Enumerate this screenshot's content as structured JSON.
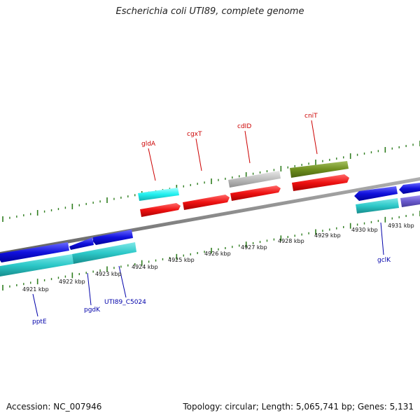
{
  "title": "Escherichia coli UTI89, complete genome",
  "footer": {
    "accession": "Accession: NC_007946",
    "summary": "Topology: circular; Length: 5,065,741 bp; Genes: 5,131"
  },
  "map": {
    "kbp_labels": [
      "4921 kbp",
      "4922 kbp",
      "4923 kbp",
      "4924 kbp",
      "4925 kbp",
      "4926 kbp",
      "4927 kbp",
      "4928 kbp",
      "4929 kbp",
      "4930 kbp",
      "4931 kbp"
    ],
    "top_labels": [
      {
        "text": "gldA",
        "color": "#cc0000"
      },
      {
        "text": "cgxT",
        "color": "#cc0000"
      },
      {
        "text": "cdID",
        "color": "#cc0000"
      },
      {
        "text": "cniT",
        "color": "#cc0000"
      }
    ],
    "bottom_labels": [
      {
        "text": "pptE",
        "color": "#0000aa"
      },
      {
        "text": "pgdK",
        "color": "#0000aa"
      },
      {
        "text": "UTI89_C5024",
        "color": "#0000aa"
      },
      {
        "text": "gclK",
        "color": "#0000aa"
      }
    ]
  },
  "colors": {
    "backbone": "#8a8a8a",
    "ticks": "#2e7d1e",
    "forward_gene": "#ee1111",
    "reverse_gene": "#1111dd",
    "cyan_gene": "#2cc8c8",
    "light_cyan_gene": "#22f0f0",
    "olive_gene": "#6f8f1f",
    "grey_gene": "#bdbdbd",
    "purple_gene": "#6a5acd"
  }
}
